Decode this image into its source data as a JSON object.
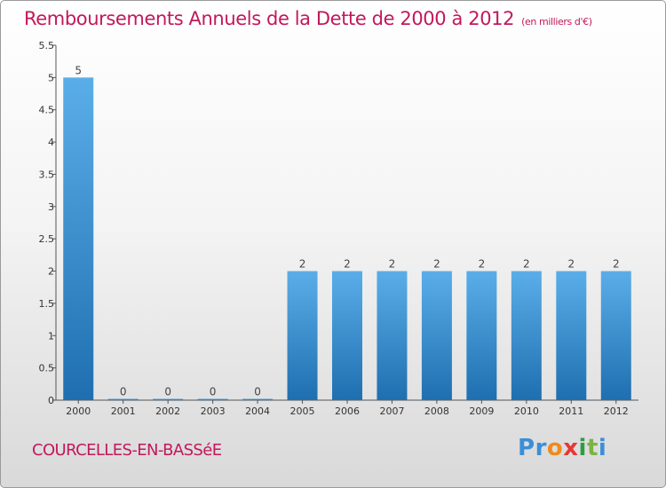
{
  "header": {
    "title": "Remboursements Annuels de la Dette de 2000 à 2012",
    "unit_note": "(en milliers d'€)"
  },
  "footer": {
    "commune": "COURCELLES-EN-BASSéE",
    "logo_letters": [
      {
        "char": "P",
        "color": "#3a8fd8"
      },
      {
        "char": "r",
        "color": "#3a8fd8"
      },
      {
        "char": "o",
        "color": "#f08a1c"
      },
      {
        "char": "x",
        "color": "#e53935"
      },
      {
        "char": "i",
        "color": "#2e9e44"
      },
      {
        "char": "t",
        "color": "#7cb342"
      },
      {
        "char": "i",
        "color": "#3a8fd8"
      }
    ]
  },
  "chart_data": {
    "type": "bar",
    "categories": [
      "2000",
      "2001",
      "2002",
      "2003",
      "2004",
      "2005",
      "2006",
      "2007",
      "2008",
      "2009",
      "2010",
      "2011",
      "2012"
    ],
    "values": [
      5,
      0,
      0,
      0,
      0,
      2,
      2,
      2,
      2,
      2,
      2,
      2,
      2
    ],
    "value_labels": [
      "5",
      "0",
      "0",
      "0",
      "0",
      "2",
      "2",
      "2",
      "2",
      "2",
      "2",
      "2",
      "2"
    ],
    "y_ticks": [
      0,
      0.5,
      1,
      1.5,
      2,
      2.5,
      3,
      3.5,
      4,
      4.5,
      5,
      5.5
    ],
    "y_tick_labels": [
      "0",
      "0.5",
      "1",
      "1.5",
      "2",
      "2.5",
      "3",
      "3.5",
      "4",
      "4.5",
      "5",
      "5.5"
    ],
    "ylim": [
      0,
      5.5
    ],
    "grid": false,
    "legend": "none",
    "bar_color_light": "#5aaee8",
    "bar_color_dark": "#1f6fb0"
  }
}
